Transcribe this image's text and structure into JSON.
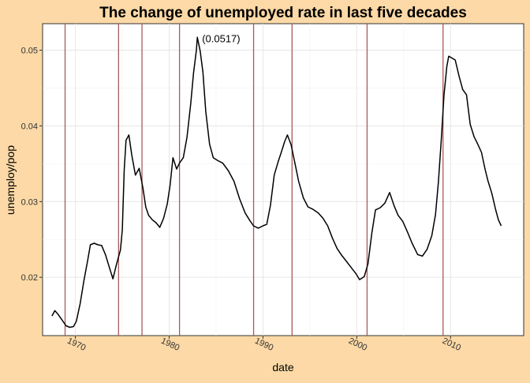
{
  "chart_data": {
    "type": "line",
    "title": "The change of unemployed rate in last five decades",
    "xlabel": "date",
    "ylabel": "unemploy/pop",
    "x_ticks": [
      1970,
      1980,
      1990,
      2000,
      2010
    ],
    "y_ticks": [
      "0.02",
      "0.03",
      "0.04",
      "0.05"
    ],
    "xlim": [
      1966.5,
      2017.8
    ],
    "ylim": [
      0.0123,
      0.0535
    ],
    "grid": true,
    "colors": {
      "page_background": "#fcd9a6",
      "panel_background": "#ffffff",
      "line": "#000000",
      "event_lines": "#a85a5a",
      "grid": "#e6e6e6"
    },
    "event_lines_x": [
      1968.9,
      1974.6,
      1977.1,
      1981.1,
      1989.0,
      1993.1,
      2001.1,
      2009.2
    ],
    "annotation": {
      "text": "(0.0517)",
      "x": 1983.0,
      "y": 0.0517
    },
    "series": [
      {
        "x": [
          1967.5,
          1967.8,
          1968.1,
          1968.5,
          1969.0,
          1969.4,
          1969.8,
          1970.1,
          1970.5,
          1970.9,
          1971.3,
          1971.6,
          1972.0,
          1972.4,
          1972.8,
          1973.2,
          1973.6,
          1974.0,
          1974.4,
          1974.8,
          1975.0,
          1975.2,
          1975.4,
          1975.7,
          1976.0,
          1976.4,
          1976.8,
          1977.2,
          1977.5,
          1977.8,
          1978.2,
          1978.6,
          1979.0,
          1979.4,
          1979.8,
          1980.1,
          1980.4,
          1980.8,
          1981.1,
          1981.5,
          1981.9,
          1982.3,
          1982.6,
          1982.9,
          1983.0,
          1983.3,
          1983.6,
          1983.9,
          1984.3,
          1984.7,
          1985.2,
          1985.7,
          1986.3,
          1986.9,
          1987.5,
          1988.1,
          1988.6,
          1989.0,
          1989.5,
          1990.0,
          1990.4,
          1990.8,
          1991.2,
          1991.6,
          1992.0,
          1992.3,
          1992.6,
          1993.0,
          1993.4,
          1993.8,
          1994.3,
          1994.8,
          1995.3,
          1995.9,
          1996.4,
          1996.9,
          1997.4,
          1997.9,
          1998.4,
          1998.9,
          1999.4,
          1999.9,
          2000.3,
          2000.8,
          2001.2,
          2001.6,
          2002.0,
          2002.5,
          2003.0,
          2003.5,
          2004.0,
          2004.4,
          2004.9,
          2005.4,
          2005.9,
          2006.5,
          2007.0,
          2007.5,
          2008.0,
          2008.4,
          2008.7,
          2009.0,
          2009.3,
          2009.6,
          2009.8,
          2010.1,
          2010.5,
          2010.9,
          2011.3,
          2011.7,
          2012.1,
          2012.5,
          2012.9,
          2013.3,
          2013.7,
          2014.0,
          2014.4,
          2014.8,
          2015.1,
          2015.4
        ],
        "y": [
          0.0149,
          0.0156,
          0.0152,
          0.0145,
          0.0136,
          0.0134,
          0.0135,
          0.0142,
          0.0165,
          0.0195,
          0.0222,
          0.0243,
          0.0245,
          0.0243,
          0.0242,
          0.023,
          0.0214,
          0.0198,
          0.0218,
          0.0236,
          0.0263,
          0.0342,
          0.0381,
          0.0388,
          0.0362,
          0.0335,
          0.0344,
          0.0318,
          0.0293,
          0.0282,
          0.0276,
          0.0272,
          0.0266,
          0.0278,
          0.0297,
          0.0322,
          0.0358,
          0.0343,
          0.0351,
          0.0358,
          0.0385,
          0.043,
          0.047,
          0.05,
          0.0517,
          0.0499,
          0.0471,
          0.0419,
          0.0376,
          0.0358,
          0.0354,
          0.0351,
          0.0341,
          0.0327,
          0.0304,
          0.0285,
          0.0275,
          0.0268,
          0.0265,
          0.0268,
          0.027,
          0.0295,
          0.0335,
          0.0352,
          0.0367,
          0.0379,
          0.0388,
          0.0375,
          0.0351,
          0.0327,
          0.0305,
          0.0293,
          0.029,
          0.0285,
          0.0278,
          0.0268,
          0.0252,
          0.0238,
          0.0229,
          0.0221,
          0.0213,
          0.0205,
          0.0197,
          0.0201,
          0.0218,
          0.0258,
          0.0289,
          0.0292,
          0.0298,
          0.0312,
          0.0294,
          0.0282,
          0.0274,
          0.026,
          0.0245,
          0.023,
          0.0228,
          0.0237,
          0.0255,
          0.0283,
          0.0325,
          0.038,
          0.044,
          0.0478,
          0.0492,
          0.049,
          0.0487,
          0.0466,
          0.0448,
          0.0441,
          0.0402,
          0.0386,
          0.0376,
          0.0365,
          0.0342,
          0.0327,
          0.0311,
          0.029,
          0.0276,
          0.0268
        ]
      }
    ]
  }
}
